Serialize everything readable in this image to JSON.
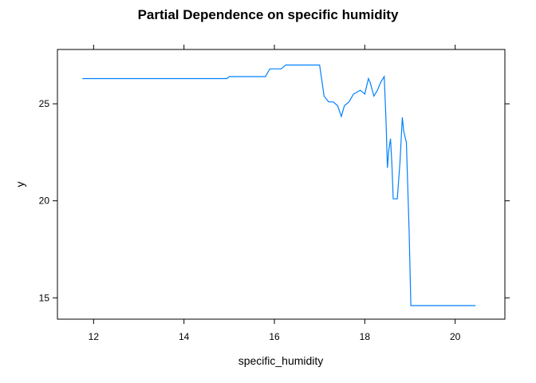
{
  "chart_data": {
    "type": "line",
    "title": "Partial Dependence on specific humidity",
    "xlabel": "specific_humidity",
    "ylabel": "y",
    "xlim": [
      11.2,
      21.1
    ],
    "ylim": [
      13.9,
      27.8
    ],
    "xticks": [
      12,
      14,
      16,
      18,
      20
    ],
    "yticks": [
      15,
      20,
      25
    ],
    "grid": false,
    "line_color": "#0080ff",
    "series": [
      {
        "x": [
          11.75,
          14.95,
          15.0,
          15.8,
          15.9,
          16.15,
          16.25,
          17.0,
          17.1,
          17.2,
          17.3,
          17.4,
          17.48,
          17.55,
          17.65,
          17.75,
          17.9,
          18.0,
          18.08,
          18.12,
          18.2,
          18.28,
          18.35,
          18.43,
          18.47,
          18.5,
          18.53,
          18.57,
          18.6,
          18.63,
          18.68,
          18.72,
          18.78,
          18.83,
          18.86,
          18.92,
          18.98,
          19.02,
          19.07,
          19.2,
          20.45
        ],
        "y": [
          26.3,
          26.3,
          26.4,
          26.4,
          26.8,
          26.8,
          27.0,
          27.0,
          25.4,
          25.1,
          25.1,
          24.9,
          24.35,
          24.9,
          25.1,
          25.5,
          25.7,
          25.5,
          26.3,
          26.1,
          25.4,
          25.7,
          26.1,
          26.4,
          24.1,
          21.7,
          22.6,
          23.2,
          21.9,
          20.1,
          20.1,
          20.1,
          22.0,
          24.3,
          23.6,
          23.0,
          18.5,
          14.6,
          14.6,
          14.6,
          14.6
        ]
      }
    ]
  }
}
